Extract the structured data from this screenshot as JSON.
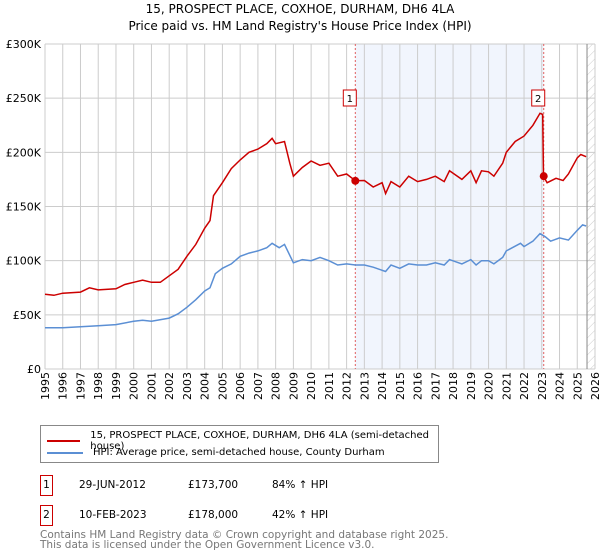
{
  "chart_data": {
    "type": "line",
    "title": "15, PROSPECT PLACE, COXHOE, DURHAM, DH6 4LA",
    "subtitle": "Price paid vs. HM Land Registry's House Price Index (HPI)",
    "xlim": [
      1995,
      2026
    ],
    "ylim": [
      0,
      300000
    ],
    "xticks": [
      "1995",
      "1996",
      "1997",
      "1998",
      "1999",
      "2000",
      "2001",
      "2002",
      "2003",
      "2004",
      "2005",
      "2006",
      "2007",
      "2008",
      "2009",
      "2010",
      "2011",
      "2012",
      "2013",
      "2014",
      "2015",
      "2016",
      "2017",
      "2018",
      "2019",
      "2020",
      "2021",
      "2022",
      "2023",
      "2024",
      "2025",
      "2026"
    ],
    "yticks": [
      {
        "v": 0,
        "label": "£0"
      },
      {
        "v": 50000,
        "label": "£50K"
      },
      {
        "v": 100000,
        "label": "£100K"
      },
      {
        "v": 150000,
        "label": "£150K"
      },
      {
        "v": 200000,
        "label": "£200K"
      },
      {
        "v": 250000,
        "label": "£250K"
      },
      {
        "v": 300000,
        "label": "£300K"
      }
    ],
    "grid": true,
    "series": [
      {
        "name": "15, PROSPECT PLACE, COXHOE, DURHAM, DH6 4LA (semi-detached house)",
        "color": "#cc0000",
        "x": [
          1995,
          1995.5,
          1996,
          1997,
          1997.5,
          1998,
          1999,
          1999.5,
          2000,
          2000.5,
          2001,
          2001.5,
          2002,
          2002.5,
          2003,
          2003.5,
          2004,
          2004.3,
          2004.5,
          2005,
          2005.5,
          2006,
          2006.5,
          2007,
          2007.5,
          2007.8,
          2008,
          2008.5,
          2008.8,
          2009,
          2009.5,
          2010,
          2010.5,
          2011,
          2011.5,
          2012,
          2012.5,
          2013,
          2013.5,
          2014,
          2014.2,
          2014.5,
          2015,
          2015.5,
          2016,
          2016.5,
          2017,
          2017.5,
          2017.8,
          2018.5,
          2019,
          2019.3,
          2019.6,
          2020,
          2020.3,
          2020.8,
          2021,
          2021.5,
          2022,
          2022.5,
          2022.9,
          2023.05,
          2023.1,
          2023.3,
          2023.8,
          2024.2,
          2024.5,
          2025,
          2025.2,
          2025.5
        ],
        "y": [
          69000,
          68000,
          70000,
          71000,
          75000,
          73000,
          74000,
          78000,
          80000,
          82000,
          80000,
          80000,
          86000,
          92000,
          104000,
          115000,
          130000,
          137000,
          160000,
          172000,
          185000,
          193000,
          200000,
          203000,
          208000,
          213000,
          208000,
          210000,
          190000,
          178000,
          186000,
          192000,
          188000,
          190000,
          178000,
          180000,
          173700,
          174000,
          168000,
          172000,
          162000,
          173000,
          168000,
          178000,
          173000,
          175000,
          178000,
          173000,
          183000,
          175000,
          183000,
          172000,
          183000,
          182000,
          178000,
          190000,
          200000,
          210000,
          215000,
          225000,
          236000,
          235000,
          178000,
          172000,
          176000,
          174000,
          180000,
          195000,
          198000,
          196000
        ]
      },
      {
        "name": "HPI: Average price, semi-detached house, County Durham",
        "color": "#5b8fd4",
        "x": [
          1995,
          1996,
          1997,
          1998,
          1999,
          2000,
          2000.5,
          2001,
          2002,
          2002.5,
          2003,
          2003.5,
          2004,
          2004.3,
          2004.6,
          2005,
          2005.5,
          2006,
          2006.5,
          2007,
          2007.5,
          2007.8,
          2008.2,
          2008.5,
          2009,
          2009.5,
          2010,
          2010.5,
          2011,
          2011.5,
          2012,
          2012.5,
          2013,
          2013.5,
          2014.2,
          2014.5,
          2015,
          2015.5,
          2016,
          2016.5,
          2017,
          2017.5,
          2017.8,
          2018.5,
          2019,
          2019.3,
          2019.6,
          2020,
          2020.3,
          2020.8,
          2021,
          2021.8,
          2022,
          2022.5,
          2022.9,
          2023.2,
          2023.5,
          2024,
          2024.5,
          2025,
          2025.3,
          2025.5
        ],
        "y": [
          38000,
          38000,
          39000,
          40000,
          41000,
          44000,
          45000,
          44000,
          47000,
          51000,
          57000,
          64000,
          72000,
          75000,
          88000,
          93000,
          97000,
          104000,
          107000,
          109000,
          112000,
          116000,
          112000,
          115000,
          98000,
          101000,
          100000,
          103000,
          100000,
          96000,
          97000,
          96000,
          96000,
          94000,
          90000,
          96000,
          93000,
          97000,
          96000,
          96000,
          98000,
          96000,
          101000,
          97000,
          101000,
          96000,
          100000,
          100000,
          97000,
          103000,
          109000,
          116000,
          113000,
          118000,
          125000,
          122000,
          118000,
          121000,
          119000,
          128000,
          133000,
          132000
        ]
      }
    ],
    "sales": [
      {
        "label": "1",
        "x": 2012.49,
        "y": 173700
      },
      {
        "label": "2",
        "x": 2023.11,
        "y": 178000
      }
    ]
  },
  "legend": {
    "items": [
      "15, PROSPECT PLACE, COXHOE, DURHAM, DH6 4LA (semi-detached house)",
      "HPI: Average price, semi-detached house, County Durham"
    ]
  },
  "transactions": [
    {
      "num": "1",
      "date": "29-JUN-2012",
      "price": "£173,700",
      "hpi": "84% ↑ HPI"
    },
    {
      "num": "2",
      "date": "10-FEB-2023",
      "price": "£178,000",
      "hpi": "42% ↑ HPI"
    }
  ],
  "footer": {
    "line1": "Contains HM Land Registry data © Crown copyright and database right 2025.",
    "line2": "This data is licensed under the Open Government Licence v3.0."
  }
}
